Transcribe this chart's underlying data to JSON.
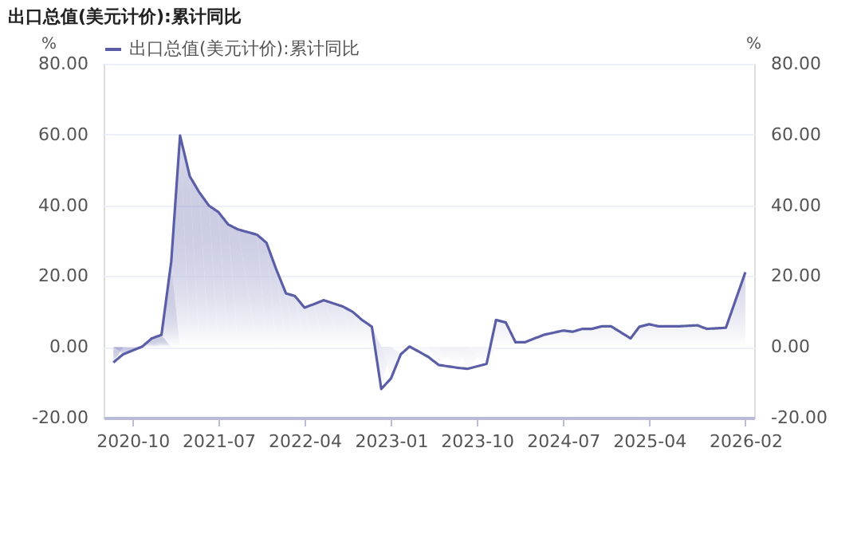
{
  "chart_data": {
    "type": "area",
    "title": "出口总值(美元计价):累计同比",
    "ylabel": "%",
    "y2label": "%",
    "legend": "top",
    "grid": "y",
    "x": [
      "2020-08",
      "2020-09",
      "2020-11",
      "2020-12",
      "2021-01",
      "2021-02",
      "2021-03",
      "2021-04",
      "2021-05",
      "2021-06",
      "2021-07",
      "2021-08",
      "2021-09",
      "2021-11",
      "2021-12",
      "2022-01",
      "2022-02",
      "2022-03",
      "2022-04",
      "2022-05",
      "2022-06",
      "2022-08",
      "2022-09",
      "2022-10",
      "2022-11",
      "2022-12",
      "2023-01",
      "2023-02",
      "2023-03",
      "2023-05",
      "2023-06",
      "2023-08",
      "2023-09",
      "2023-11",
      "2023-12",
      "2024-01",
      "2024-02",
      "2024-03",
      "2024-05",
      "2024-07",
      "2024-08",
      "2024-09",
      "2024-10",
      "2024-11",
      "2024-12",
      "2025-02",
      "2025-03",
      "2025-04",
      "2025-05",
      "2025-07",
      "2025-09",
      "2025-10",
      "2025-12",
      "2026-02"
    ],
    "series": [
      {
        "name": "出口总值(美元计价):累计同比",
        "color": "#5a5ea6",
        "values": [
          -4.4,
          -2.1,
          0.1,
          2.4,
          3.4,
          24.1,
          59.7,
          48.2,
          43.7,
          39.9,
          38.1,
          34.6,
          33.2,
          31.7,
          29.4,
          21.9,
          15.1,
          14.4,
          11.1,
          12.1,
          13.2,
          11.4,
          9.9,
          7.6,
          5.7,
          -11.9,
          -8.9,
          -2.1,
          0.1,
          -2.9,
          -5.1,
          -5.9,
          -6.2,
          -4.8,
          7.6,
          6.9,
          1.3,
          1.3,
          3.4,
          4.6,
          4.3,
          5.1,
          5.1,
          5.8,
          5.8,
          2.4,
          5.7,
          6.4,
          5.8,
          5.8,
          6.1,
          5.1,
          5.4,
          21.1
        ]
      }
    ],
    "xlim": [
      "2020-07",
      "2026-03"
    ],
    "xticks": [
      {
        "value": "2020-10",
        "label": "2020-10"
      },
      {
        "value": "2021-07",
        "label": "2021-07"
      },
      {
        "value": "2022-04",
        "label": "2022-04"
      },
      {
        "value": "2023-01",
        "label": "2023-01"
      },
      {
        "value": "2023-10",
        "label": "2023-10"
      },
      {
        "value": "2024-07",
        "label": "2024-07"
      },
      {
        "value": "2025-04",
        "label": "2025-04"
      },
      {
        "value": "2026-02",
        "label": "2026-02"
      }
    ],
    "ylim": [
      -20,
      80
    ],
    "yticks": [
      {
        "value": -20,
        "label": "-20.00"
      },
      {
        "value": 0,
        "label": "0.00"
      },
      {
        "value": 20,
        "label": "20.00"
      },
      {
        "value": 40,
        "label": "40.00"
      },
      {
        "value": 60,
        "label": "60.00"
      },
      {
        "value": 80,
        "label": "80.00"
      }
    ],
    "y2lim": [
      -20,
      80
    ],
    "y2ticks": [
      {
        "value": -20,
        "label": "-20.00"
      },
      {
        "value": 0,
        "label": "0.00"
      },
      {
        "value": 20,
        "label": "20.00"
      },
      {
        "value": 40,
        "label": "40.00"
      },
      {
        "value": 60,
        "label": "60.00"
      },
      {
        "value": 80,
        "label": "80.00"
      }
    ]
  }
}
